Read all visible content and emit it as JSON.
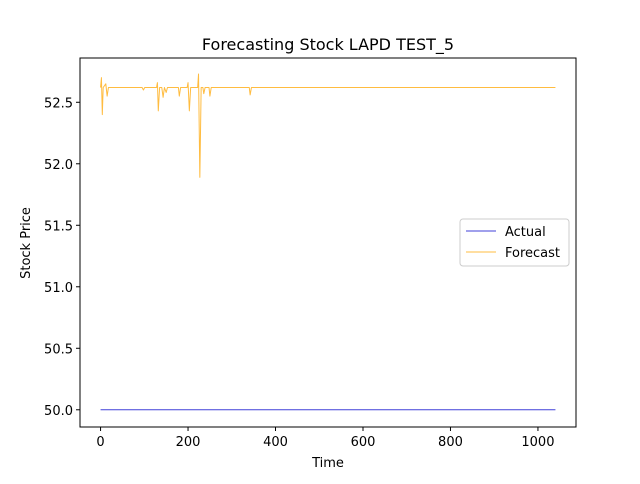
{
  "chart_data": {
    "type": "line",
    "title": "Forecasting Stock LAPD TEST_5",
    "xlabel": "Time",
    "ylabel": "Stock Price",
    "xlim": [
      -47,
      1087
    ],
    "ylim": [
      49.86,
      52.86
    ],
    "x_ticks": [
      0,
      200,
      400,
      600,
      800,
      1000
    ],
    "x_tick_labels": [
      "0",
      "200",
      "400",
      "600",
      "800",
      "1000"
    ],
    "y_ticks": [
      50.0,
      50.5,
      51.0,
      51.5,
      52.0,
      52.5
    ],
    "y_tick_labels": [
      "50.0",
      "50.5",
      "51.0",
      "51.5",
      "52.0",
      "52.5"
    ],
    "grid": false,
    "legend_position": "center-right",
    "series": [
      {
        "name": "Actual",
        "color": "#0000cc",
        "points": [
          [
            0,
            50.0
          ],
          [
            1040,
            50.0
          ]
        ]
      },
      {
        "name": "Forecast",
        "color": "#ffa500",
        "points": [
          [
            0,
            52.62
          ],
          [
            2,
            52.7
          ],
          [
            4,
            52.4
          ],
          [
            6,
            52.62
          ],
          [
            12,
            52.65
          ],
          [
            15,
            52.55
          ],
          [
            18,
            52.62
          ],
          [
            95,
            52.62
          ],
          [
            98,
            52.6
          ],
          [
            101,
            52.62
          ],
          [
            128,
            52.62
          ],
          [
            130,
            52.66
          ],
          [
            132,
            52.43
          ],
          [
            135,
            52.62
          ],
          [
            140,
            52.62
          ],
          [
            143,
            52.54
          ],
          [
            146,
            52.62
          ],
          [
            150,
            52.58
          ],
          [
            153,
            52.62
          ],
          [
            178,
            52.62
          ],
          [
            180,
            52.55
          ],
          [
            183,
            52.62
          ],
          [
            198,
            52.62
          ],
          [
            200,
            52.66
          ],
          [
            203,
            52.43
          ],
          [
            206,
            52.62
          ],
          [
            222,
            52.62
          ],
          [
            224,
            52.73
          ],
          [
            227,
            51.89
          ],
          [
            230,
            52.62
          ],
          [
            234,
            52.62
          ],
          [
            236,
            52.57
          ],
          [
            239,
            52.62
          ],
          [
            248,
            52.62
          ],
          [
            250,
            52.55
          ],
          [
            253,
            52.62
          ],
          [
            340,
            52.62
          ],
          [
            342,
            52.56
          ],
          [
            345,
            52.62
          ],
          [
            1040,
            52.62
          ]
        ]
      }
    ]
  }
}
